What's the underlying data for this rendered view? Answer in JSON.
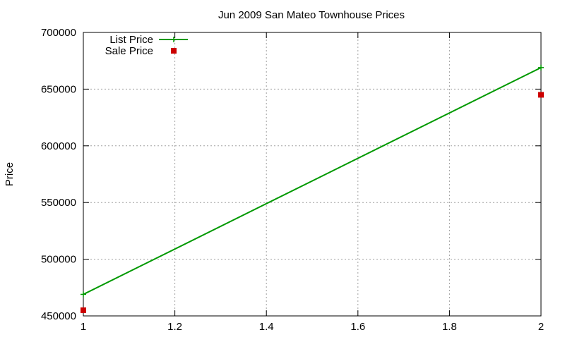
{
  "chart_data": {
    "type": "line",
    "title": "Jun 2009 San Mateo Townhouse Prices",
    "xlabel": "",
    "ylabel": "Price",
    "xlim": [
      1,
      2
    ],
    "ylim": [
      450000,
      700000
    ],
    "x_ticks": [
      {
        "value": 1,
        "label": "1"
      },
      {
        "value": 1.2,
        "label": "1.2"
      },
      {
        "value": 1.4,
        "label": "1.4"
      },
      {
        "value": 1.6,
        "label": "1.6"
      },
      {
        "value": 1.8,
        "label": "1.8"
      },
      {
        "value": 2,
        "label": "2"
      }
    ],
    "y_ticks": [
      {
        "value": 450000,
        "label": "450000"
      },
      {
        "value": 500000,
        "label": "500000"
      },
      {
        "value": 550000,
        "label": "550000"
      },
      {
        "value": 600000,
        "label": "600000"
      },
      {
        "value": 650000,
        "label": "650000"
      },
      {
        "value": 700000,
        "label": "700000"
      }
    ],
    "grid": true,
    "legend_position": "top-left",
    "series": [
      {
        "name": "List Price",
        "style": "lines+points",
        "marker": "plus",
        "color": "#009900",
        "x": [
          1,
          2
        ],
        "y": [
          469000,
          669000
        ]
      },
      {
        "name": "Sale Price",
        "style": "points",
        "marker": "square",
        "color": "#cc0000",
        "x": [
          1,
          2
        ],
        "y": [
          455000,
          645000
        ]
      }
    ]
  }
}
